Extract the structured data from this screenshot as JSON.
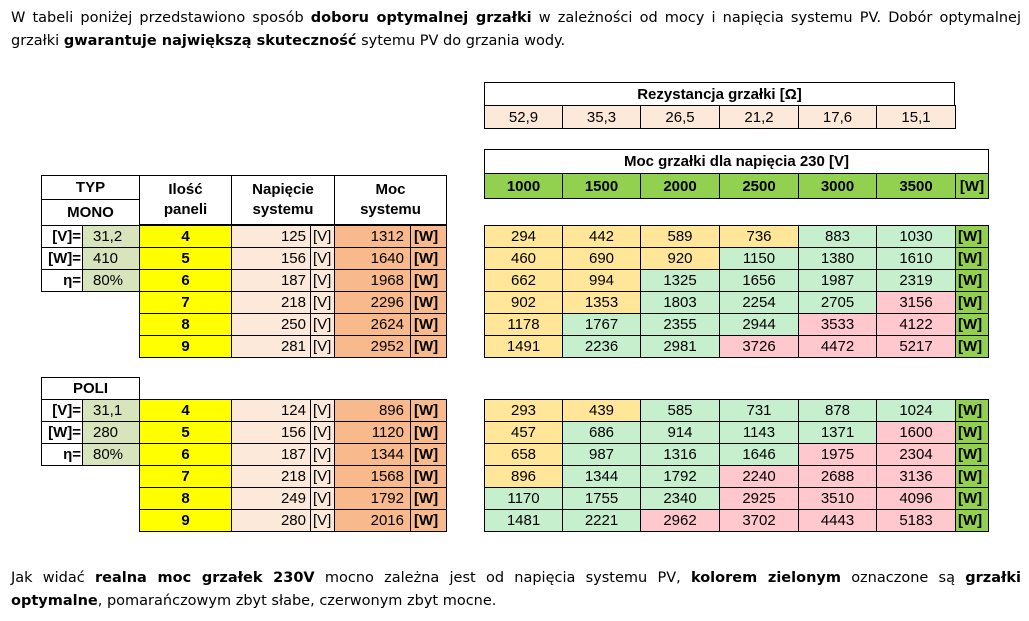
{
  "intro": {
    "t1": "W tabeli poniżej przedstawiono sposób ",
    "b1": "doboru optymalnej grzałki",
    "t2": " w zależności od mocy i napięcia systemu PV. Dobór optymalnej grzałki ",
    "b2": "gwarantuje największą skuteczność",
    "t3": " sytemu PV do grzania wody."
  },
  "resistance": {
    "title": "Rezystancja grzałki  [Ω]",
    "values": [
      "52,9",
      "35,3",
      "26,5",
      "21,2",
      "17,6",
      "15,1"
    ]
  },
  "heater_power": {
    "title": "Moc grzałki dla napięcia 230 [V]",
    "values": [
      "1000",
      "1500",
      "2000",
      "2500",
      "3000",
      "3500"
    ],
    "unit": "[W]"
  },
  "left_headers": {
    "typ": "TYP",
    "ilosc": "Ilość\npaneli",
    "napiecie": "Napięcie\nsystemu",
    "moc": "Moc\nsystemu"
  },
  "mono": {
    "name": "MONO",
    "params": [
      {
        "label": "[V]=",
        "value": "31,2"
      },
      {
        "label": "[W]=",
        "value": "410"
      },
      {
        "label": "η=",
        "value": "80%"
      }
    ],
    "rows": [
      {
        "panels": "4",
        "voltage": "125",
        "power": "1312",
        "cells": [
          "294",
          "442",
          "589",
          "736",
          "883",
          "1030"
        ]
      },
      {
        "panels": "5",
        "voltage": "156",
        "power": "1640",
        "cells": [
          "460",
          "690",
          "920",
          "1150",
          "1380",
          "1610"
        ]
      },
      {
        "panels": "6",
        "voltage": "187",
        "power": "1968",
        "cells": [
          "662",
          "994",
          "1325",
          "1656",
          "1987",
          "2319"
        ]
      },
      {
        "panels": "7",
        "voltage": "218",
        "power": "2296",
        "cells": [
          "902",
          "1353",
          "1803",
          "2254",
          "2705",
          "3156"
        ]
      },
      {
        "panels": "8",
        "voltage": "250",
        "power": "2624",
        "cells": [
          "1178",
          "1767",
          "2355",
          "2944",
          "3533",
          "4122"
        ]
      },
      {
        "panels": "9",
        "voltage": "281",
        "power": "2952",
        "cells": [
          "1491",
          "2236",
          "2981",
          "3726",
          "4472",
          "5217"
        ]
      }
    ],
    "colors": [
      [
        "o",
        "o",
        "o",
        "o",
        "g",
        "g"
      ],
      [
        "o",
        "o",
        "o",
        "g",
        "g",
        "g"
      ],
      [
        "o",
        "o",
        "g",
        "g",
        "g",
        "g"
      ],
      [
        "o",
        "o",
        "g",
        "g",
        "g",
        "r"
      ],
      [
        "o",
        "g",
        "g",
        "g",
        "r",
        "r"
      ],
      [
        "o",
        "g",
        "g",
        "r",
        "r",
        "r"
      ]
    ]
  },
  "poli": {
    "name": "POLI",
    "params": [
      {
        "label": "[V]=",
        "value": "31,1"
      },
      {
        "label": "[W]=",
        "value": "280"
      },
      {
        "label": "η=",
        "value": "80%"
      }
    ],
    "rows": [
      {
        "panels": "4",
        "voltage": "124",
        "power": "896",
        "cells": [
          "293",
          "439",
          "585",
          "731",
          "878",
          "1024"
        ]
      },
      {
        "panels": "5",
        "voltage": "156",
        "power": "1120",
        "cells": [
          "457",
          "686",
          "914",
          "1143",
          "1371",
          "1600"
        ]
      },
      {
        "panels": "6",
        "voltage": "187",
        "power": "1344",
        "cells": [
          "658",
          "987",
          "1316",
          "1646",
          "1975",
          "2304"
        ]
      },
      {
        "panels": "7",
        "voltage": "218",
        "power": "1568",
        "cells": [
          "896",
          "1344",
          "1792",
          "2240",
          "2688",
          "3136"
        ]
      },
      {
        "panels": "8",
        "voltage": "249",
        "power": "1792",
        "cells": [
          "1170",
          "1755",
          "2340",
          "2925",
          "3510",
          "4096"
        ]
      },
      {
        "panels": "9",
        "voltage": "280",
        "power": "2016",
        "cells": [
          "1481",
          "2221",
          "2962",
          "3702",
          "4443",
          "5183"
        ]
      }
    ],
    "colors": [
      [
        "o",
        "o",
        "g",
        "g",
        "g",
        "g"
      ],
      [
        "o",
        "g",
        "g",
        "g",
        "g",
        "r"
      ],
      [
        "o",
        "g",
        "g",
        "g",
        "r",
        "r"
      ],
      [
        "o",
        "g",
        "g",
        "r",
        "r",
        "r"
      ],
      [
        "g",
        "g",
        "g",
        "r",
        "r",
        "r"
      ],
      [
        "g",
        "g",
        "r",
        "r",
        "r",
        "r"
      ]
    ]
  },
  "units": {
    "v": "[V]",
    "w": "[W]"
  },
  "outro": {
    "t1": "Jak widać ",
    "b1": "realna moc grzałek 230V",
    "t2": " mocno zależna jest od napięcia systemu PV, ",
    "b2": "kolorem zielonym",
    "t3": " oznaczone są ",
    "b3": "grzałki optymalne",
    "t4": ", pomarańczowym zbyt słabe, czerwonym zbyt mocne."
  }
}
